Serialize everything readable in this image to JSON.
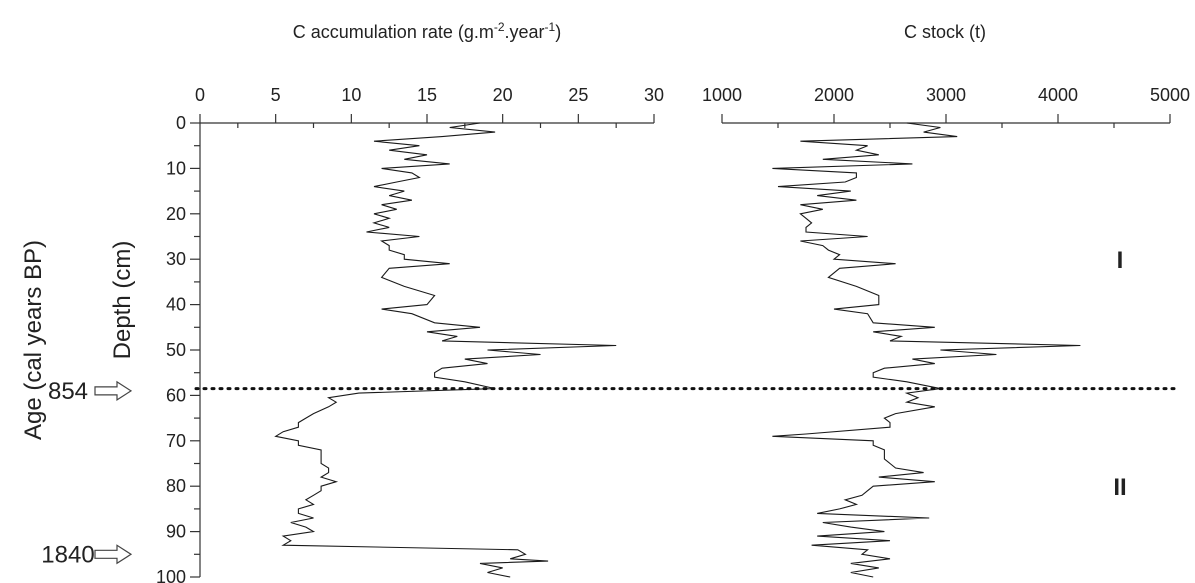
{
  "chart_data": [
    {
      "type": "line",
      "title": "C accumulation rate (g.m⁻².year⁻¹)",
      "x_ticks": [
        0,
        5,
        10,
        15,
        20,
        25,
        30
      ],
      "xlim": [
        0,
        30
      ],
      "ylim": [
        0,
        100
      ],
      "y_ticks": [
        0,
        10,
        20,
        30,
        40,
        50,
        60,
        70,
        80,
        90,
        100
      ],
      "ylabel": "Depth (cm)",
      "series": [
        {
          "points": [
            [
              18.5,
              0
            ],
            [
              16.5,
              1
            ],
            [
              19.5,
              2
            ],
            [
              16.0,
              3
            ],
            [
              11.5,
              4
            ],
            [
              14.5,
              5
            ],
            [
              12.5,
              6
            ],
            [
              15.0,
              7
            ],
            [
              13.5,
              8
            ],
            [
              16.5,
              9
            ],
            [
              12.0,
              10
            ],
            [
              14.0,
              11
            ],
            [
              14.5,
              12
            ],
            [
              13.0,
              13
            ],
            [
              11.5,
              14
            ],
            [
              13.5,
              15
            ],
            [
              12.5,
              16
            ],
            [
              14.0,
              17
            ],
            [
              12.0,
              18
            ],
            [
              13.0,
              19
            ],
            [
              11.5,
              20
            ],
            [
              12.5,
              21
            ],
            [
              11.5,
              22
            ],
            [
              12.5,
              23
            ],
            [
              11.0,
              24
            ],
            [
              14.5,
              25
            ],
            [
              12.0,
              26
            ],
            [
              12.5,
              27
            ],
            [
              12.5,
              28
            ],
            [
              13.5,
              29
            ],
            [
              13.5,
              30
            ],
            [
              16.5,
              31
            ],
            [
              12.5,
              32
            ],
            [
              12.0,
              34
            ],
            [
              13.5,
              36
            ],
            [
              15.5,
              38
            ],
            [
              15.0,
              40
            ],
            [
              12.0,
              41
            ],
            [
              14.0,
              42
            ],
            [
              15.5,
              44
            ],
            [
              18.5,
              45
            ],
            [
              15.0,
              46
            ],
            [
              17.0,
              47
            ],
            [
              16.0,
              48
            ],
            [
              27.5,
              49
            ],
            [
              19.0,
              50
            ],
            [
              22.5,
              51
            ],
            [
              17.5,
              52
            ],
            [
              19.0,
              53
            ],
            [
              16.0,
              54
            ],
            [
              15.5,
              55
            ],
            [
              15.5,
              56
            ],
            [
              17.5,
              57
            ],
            [
              19.5,
              58.5
            ],
            [
              10.5,
              59.5
            ],
            [
              8.5,
              60.5
            ],
            [
              9.0,
              61.5
            ],
            [
              8.5,
              62.5
            ],
            [
              7.5,
              64
            ],
            [
              7.0,
              65
            ],
            [
              6.5,
              66
            ],
            [
              6.5,
              67
            ],
            [
              5.5,
              68
            ],
            [
              5.0,
              69
            ],
            [
              6.5,
              70
            ],
            [
              6.5,
              71
            ],
            [
              8.0,
              72
            ],
            [
              8.0,
              74
            ],
            [
              8.0,
              75
            ],
            [
              8.5,
              76
            ],
            [
              8.5,
              77
            ],
            [
              8.0,
              78
            ],
            [
              9.0,
              79
            ],
            [
              8.0,
              80
            ],
            [
              8.0,
              81
            ],
            [
              7.5,
              82
            ],
            [
              7.0,
              83
            ],
            [
              7.5,
              84
            ],
            [
              6.5,
              85
            ],
            [
              6.5,
              86
            ],
            [
              7.5,
              87
            ],
            [
              6.0,
              88
            ],
            [
              7.0,
              89
            ],
            [
              7.5,
              90
            ],
            [
              5.5,
              91
            ],
            [
              6.0,
              92
            ],
            [
              5.5,
              93
            ],
            [
              21.0,
              94
            ],
            [
              21.5,
              95
            ],
            [
              20.5,
              96
            ],
            [
              23.0,
              96.5
            ],
            [
              18.5,
              97
            ],
            [
              20.0,
              98
            ],
            [
              19.0,
              99
            ],
            [
              20.5,
              100
            ]
          ]
        }
      ]
    },
    {
      "type": "line",
      "title": "C stock (t)",
      "x_ticks": [
        1000,
        2000,
        3000,
        4000,
        5000
      ],
      "xlim": [
        1000,
        5000
      ],
      "ylim": [
        0,
        100
      ],
      "series": [
        {
          "points": [
            [
              2650,
              0
            ],
            [
              2950,
              1
            ],
            [
              2800,
              2
            ],
            [
              3100,
              3
            ],
            [
              1700,
              4
            ],
            [
              2300,
              5
            ],
            [
              2200,
              6
            ],
            [
              2400,
              7
            ],
            [
              1900,
              8
            ],
            [
              2700,
              9
            ],
            [
              1450,
              10
            ],
            [
              2200,
              11
            ],
            [
              2200,
              12
            ],
            [
              2100,
              13
            ],
            [
              1500,
              14
            ],
            [
              2150,
              15
            ],
            [
              1850,
              16
            ],
            [
              2200,
              17
            ],
            [
              1700,
              18
            ],
            [
              1900,
              19
            ],
            [
              1700,
              20
            ],
            [
              1750,
              21
            ],
            [
              1800,
              22
            ],
            [
              1750,
              23
            ],
            [
              1750,
              24
            ],
            [
              2300,
              25
            ],
            [
              1700,
              26
            ],
            [
              1900,
              27
            ],
            [
              1950,
              28
            ],
            [
              2050,
              29
            ],
            [
              2000,
              30
            ],
            [
              2550,
              31
            ],
            [
              2050,
              32
            ],
            [
              1950,
              34
            ],
            [
              2200,
              36
            ],
            [
              2400,
              38
            ],
            [
              2400,
              40
            ],
            [
              2000,
              41
            ],
            [
              2300,
              42
            ],
            [
              2350,
              44
            ],
            [
              2900,
              45
            ],
            [
              2350,
              46
            ],
            [
              2600,
              47
            ],
            [
              2500,
              48
            ],
            [
              4200,
              49
            ],
            [
              2950,
              50
            ],
            [
              3450,
              51
            ],
            [
              2700,
              52
            ],
            [
              2900,
              53
            ],
            [
              2450,
              54
            ],
            [
              2350,
              55
            ],
            [
              2350,
              56
            ],
            [
              2650,
              57
            ],
            [
              2950,
              58.5
            ],
            [
              2650,
              59.5
            ],
            [
              2750,
              60.5
            ],
            [
              2650,
              61.5
            ],
            [
              2900,
              62.5
            ],
            [
              2550,
              64
            ],
            [
              2450,
              65
            ],
            [
              2500,
              66
            ],
            [
              2500,
              67
            ],
            [
              1750,
              68.5
            ],
            [
              1450,
              69
            ],
            [
              2350,
              70
            ],
            [
              2350,
              71
            ],
            [
              2450,
              72
            ],
            [
              2450,
              74
            ],
            [
              2500,
              75
            ],
            [
              2550,
              76
            ],
            [
              2800,
              77
            ],
            [
              2400,
              78
            ],
            [
              2900,
              79
            ],
            [
              2350,
              80
            ],
            [
              2300,
              81
            ],
            [
              2250,
              82
            ],
            [
              2100,
              83
            ],
            [
              2200,
              84
            ],
            [
              2050,
              85
            ],
            [
              1850,
              86
            ],
            [
              2850,
              87
            ],
            [
              1900,
              88
            ],
            [
              2150,
              89
            ],
            [
              2450,
              90
            ],
            [
              1850,
              91
            ],
            [
              2500,
              92
            ],
            [
              1800,
              93
            ],
            [
              2300,
              94
            ],
            [
              2250,
              95
            ],
            [
              2500,
              96
            ],
            [
              2150,
              97
            ],
            [
              2400,
              98
            ],
            [
              2150,
              99
            ],
            [
              2350,
              100
            ]
          ]
        }
      ]
    }
  ],
  "age_axis": {
    "label": "Age (cal years BP)",
    "markers": [
      {
        "age": "854",
        "depth": 59
      },
      {
        "age": "1840",
        "depth": 95
      }
    ]
  },
  "zones": [
    {
      "label": "I",
      "depth": 30
    },
    {
      "label": "II",
      "depth": 80
    }
  ],
  "boundary_depth": 58.5
}
